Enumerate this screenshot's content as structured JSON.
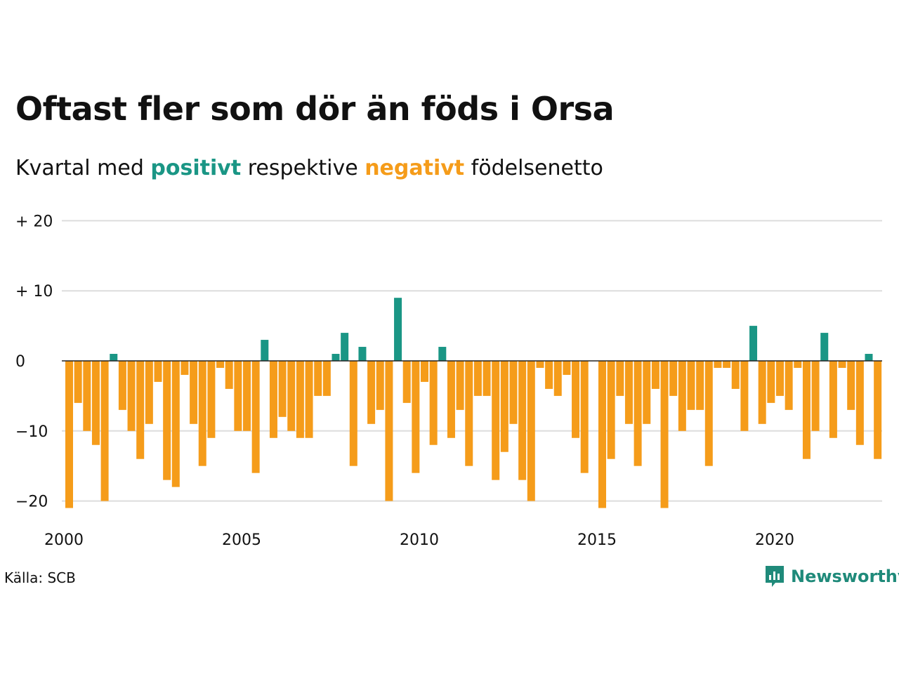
{
  "title": "Oftast fler som dör än föds i Orsa",
  "subtitle": {
    "part1": "Kvartal med ",
    "positive_word": "positivt",
    "part2": " respektive ",
    "negative_word": "negativt",
    "part3": " födelsenetto"
  },
  "source": "Källa: SCB",
  "logo": {
    "text": "Newsworthy",
    "icon": "bar-chart-speech-bubble-icon"
  },
  "colors": {
    "positive": "#1a9685",
    "negative": "#f59c1a",
    "grid": "#dddddd",
    "zero_line": "#222222"
  },
  "chart_data": {
    "type": "bar",
    "title": "Oftast fler som dör än föds i Orsa",
    "subtitle": "Kvartal med positivt respektive negativt födelsenetto",
    "xlabel": "",
    "ylabel": "",
    "ylim": [
      -21,
      20
    ],
    "y_ticks": [
      {
        "value": 20,
        "label": "+ 20"
      },
      {
        "value": 10,
        "label": "+ 10"
      },
      {
        "value": 0,
        "label": "0"
      },
      {
        "value": -10,
        "label": "−10"
      },
      {
        "value": -20,
        "label": "−20"
      }
    ],
    "x_ticks": [
      {
        "label": "2000"
      },
      {
        "label": "2005"
      },
      {
        "label": "2010"
      },
      {
        "label": "2015"
      },
      {
        "label": "2020"
      }
    ],
    "grid": true,
    "first_period": "2000 Q1",
    "categories": [
      "2000 Q1",
      "2000 Q2",
      "2000 Q3",
      "2000 Q4",
      "2001 Q1",
      "2001 Q2",
      "2001 Q3",
      "2001 Q4",
      "2002 Q1",
      "2002 Q2",
      "2002 Q3",
      "2002 Q4",
      "2003 Q1",
      "2003 Q2",
      "2003 Q3",
      "2003 Q4",
      "2004 Q1",
      "2004 Q2",
      "2004 Q3",
      "2004 Q4",
      "2005 Q1",
      "2005 Q2",
      "2005 Q3",
      "2005 Q4",
      "2006 Q1",
      "2006 Q2",
      "2006 Q3",
      "2006 Q4",
      "2007 Q1",
      "2007 Q2",
      "2007 Q3",
      "2007 Q4",
      "2008 Q1",
      "2008 Q2",
      "2008 Q3",
      "2008 Q4",
      "2009 Q1",
      "2009 Q2",
      "2009 Q3",
      "2009 Q4",
      "2010 Q1",
      "2010 Q2",
      "2010 Q3",
      "2010 Q4",
      "2011 Q1",
      "2011 Q2",
      "2011 Q3",
      "2011 Q4",
      "2012 Q1",
      "2012 Q2",
      "2012 Q3",
      "2012 Q4",
      "2013 Q1",
      "2013 Q2",
      "2013 Q3",
      "2013 Q4",
      "2014 Q1",
      "2014 Q2",
      "2014 Q3",
      "2014 Q4",
      "2015 Q1",
      "2015 Q2",
      "2015 Q3",
      "2015 Q4",
      "2016 Q1",
      "2016 Q2",
      "2016 Q3",
      "2016 Q4",
      "2017 Q1",
      "2017 Q2",
      "2017 Q3",
      "2017 Q4",
      "2018 Q1",
      "2018 Q2",
      "2018 Q3",
      "2018 Q4",
      "2019 Q1",
      "2019 Q2",
      "2019 Q3",
      "2019 Q4",
      "2020 Q1",
      "2020 Q2",
      "2020 Q3",
      "2020 Q4",
      "2021 Q1",
      "2021 Q2",
      "2021 Q3",
      "2021 Q4",
      "2022 Q1",
      "2022 Q2",
      "2022 Q3",
      "2022 Q4",
      "2023 Q1"
    ],
    "values": [
      -21,
      -6,
      -10,
      -12,
      -20,
      1,
      -7,
      -10,
      -14,
      -9,
      -3,
      -17,
      -18,
      -2,
      -9,
      -15,
      -11,
      -1,
      -4,
      -10,
      -10,
      -16,
      3,
      -11,
      -8,
      -10,
      -11,
      -11,
      -5,
      -5,
      1,
      4,
      -15,
      2,
      -9,
      -7,
      -20,
      9,
      -6,
      -16,
      -3,
      -12,
      2,
      -11,
      -7,
      -15,
      -5,
      -5,
      -17,
      -13,
      -9,
      -17,
      -20,
      -1,
      -4,
      -5,
      -2,
      -11,
      -16,
      0,
      -21,
      -14,
      -5,
      -9,
      -15,
      -9,
      -4,
      -21,
      -5,
      -10,
      -7,
      -7,
      -15,
      -1,
      -1,
      -4,
      -10,
      5,
      -9,
      -6,
      -5,
      -7,
      -1,
      -14,
      -10,
      4,
      -11,
      -1,
      -7,
      -12,
      1,
      -14,
      0
    ]
  }
}
